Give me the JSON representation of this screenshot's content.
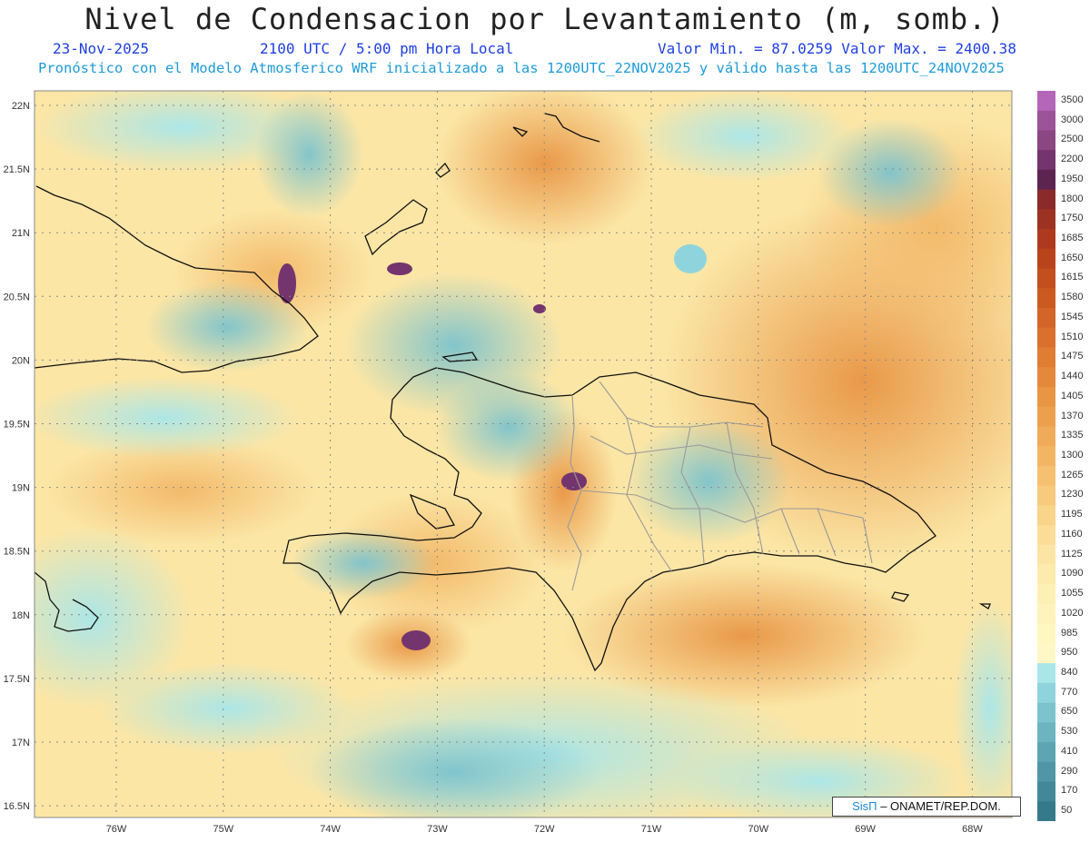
{
  "title": "Nivel de Condensacion por Levantamiento (m, somb.)",
  "date": "23-Nov-2025",
  "time": "2100 UTC / 5:00 pm Hora Local",
  "range": "Valor Min. = 87.0259   Valor Max. = 2400.38",
  "forecast": "Pronóstico con el Modelo Atmosferico WRF inicializado a las 1200UTC_22NOV2025 y válido hasta las  1200UTC_24NOV2025",
  "lat_labels": [
    "22N",
    "21.5N",
    "21N",
    "20.5N",
    "20N",
    "19.5N",
    "19N",
    "18.5N",
    "18N",
    "17.5N",
    "17N",
    "16.5N"
  ],
  "lon_labels": [
    "76W",
    "75W",
    "74W",
    "73W",
    "72W",
    "71W",
    "70W",
    "69W",
    "68W"
  ],
  "legend": {
    "values": [
      "3500",
      "3000",
      "2500",
      "2200",
      "1950",
      "1800",
      "1750",
      "1685",
      "1650",
      "1615",
      "1580",
      "1545",
      "1510",
      "1475",
      "1440",
      "1405",
      "1370",
      "1335",
      "1300",
      "1265",
      "1230",
      "1195",
      "1160",
      "1125",
      "1090",
      "1055",
      "1020",
      "985",
      "950",
      "840",
      "770",
      "650",
      "530",
      "410",
      "290",
      "170",
      "50"
    ],
    "colors": [
      "#b467b8",
      "#9d5398",
      "#8a4782",
      "#74346d",
      "#5c2451",
      "#8b2a2a",
      "#9c3222",
      "#ad3a1e",
      "#b9441c",
      "#c24f1d",
      "#cb5a21",
      "#d26527",
      "#d9702d",
      "#df7d33",
      "#e4893b",
      "#e89544",
      "#eca04e",
      "#efab59",
      "#f2b564",
      "#f5c070",
      "#f7ca7d",
      "#f9d48b",
      "#fbdd98",
      "#fce5a4",
      "#fdebae",
      "#fdf0b5",
      "#fef4bb",
      "#fff6c0",
      "#fff8c6",
      "#a8e6ea",
      "#8fd4dc",
      "#7cc3cd",
      "#6cb4c0",
      "#5ea5b3",
      "#5096a6",
      "#438898",
      "#357a8a"
    ]
  },
  "credit": {
    "brand": "SisΠ",
    "rest": " –  ONAMET/REP.DOM."
  }
}
